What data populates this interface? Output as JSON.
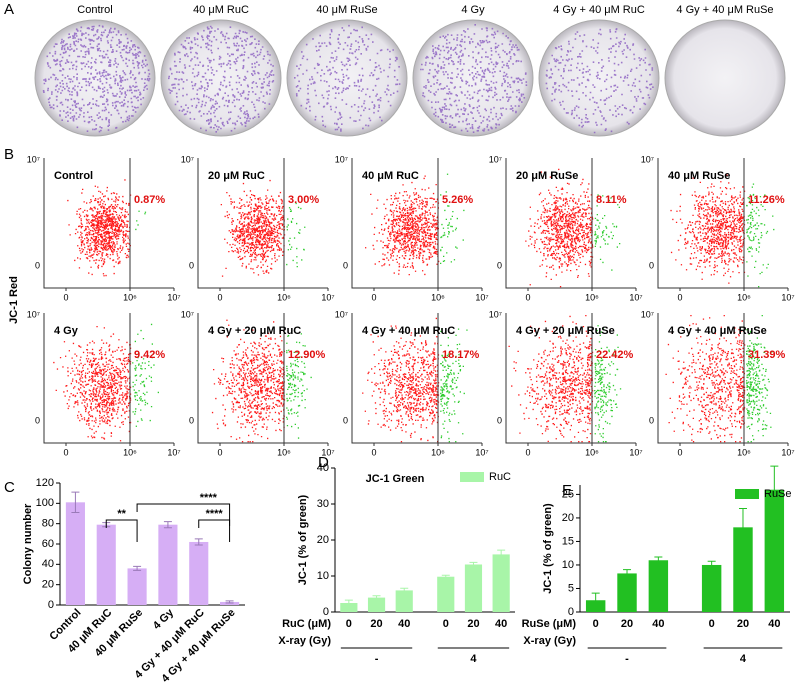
{
  "panel_a": {
    "label": "A",
    "titles": [
      "Control",
      "40 μM RuC",
      "40 μM RuSe",
      "4 Gy",
      "4 Gy + 40 μM RuC",
      "4 Gy + 40 μM RuSe"
    ]
  },
  "panel_b": {
    "label": "B",
    "ylabel": "JC-1 Red",
    "xlabel": "JC-1 Green",
    "xtick_labels": [
      "0",
      "10⁶",
      "10⁷"
    ],
    "ytick_labels": [
      "0",
      "10⁷"
    ],
    "plots": [
      {
        "title": "Control",
        "percent": "0.87%"
      },
      {
        "title": "20 μM RuC",
        "percent": "3.00%"
      },
      {
        "title": "40 μM RuC",
        "percent": "5.26%"
      },
      {
        "title": "20 μM RuSe",
        "percent": "8.11%"
      },
      {
        "title": "40 μM RuSe",
        "percent": "11.26%"
      },
      {
        "title": "4 Gy",
        "percent": "9.42%"
      },
      {
        "title": "4 Gy + 20 μM RuC",
        "percent": "12.90%"
      },
      {
        "title": "4 Gy + 40 μM RuC",
        "percent": "18.17%"
      },
      {
        "title": "4 Gy + 20 μM RuSe",
        "percent": "22.42%"
      },
      {
        "title": "4 Gy + 40 μM RuSe",
        "percent": "31.39%"
      }
    ]
  },
  "chart_data": [
    {
      "type": "bar",
      "label": "C",
      "ylabel": "Colony number",
      "categories": [
        "Control",
        "40 μM RuC",
        "40 μM RuSe",
        "4 Gy",
        "4 Gy + 40 μM RuC",
        "4 Gy + 40 μM RuSe"
      ],
      "values": [
        101,
        79,
        36,
        79,
        62,
        3
      ],
      "errors": [
        10,
        2,
        2,
        3,
        3,
        1
      ],
      "color": "#d6aef5",
      "ylim": [
        0,
        120
      ],
      "yticks": [
        0,
        20,
        40,
        60,
        80,
        100,
        120
      ],
      "annotations": [
        "**",
        "****",
        "****"
      ]
    },
    {
      "type": "bar",
      "label": "D",
      "ylabel": "JC-1 (% of green)",
      "categories": [
        "0",
        "20",
        "40",
        "0",
        "20",
        "40"
      ],
      "row_labels": [
        "RuC (μM)",
        "X-ray (Gy)"
      ],
      "groups": [
        "-",
        "4"
      ],
      "series": [
        {
          "name": "RuC",
          "color": "#a8f5a8",
          "values": [
            2.5,
            4,
            6,
            9.8,
            13.2,
            16
          ],
          "errors": [
            0.8,
            0.5,
            0.6,
            0.4,
            0.6,
            1.2
          ]
        }
      ],
      "ylim": [
        0,
        40
      ],
      "yticks": [
        0,
        10,
        20,
        30,
        40
      ]
    },
    {
      "type": "bar",
      "label": "E",
      "ylabel": "JC-1 (% of green)",
      "categories": [
        "0",
        "20",
        "40",
        "0",
        "20",
        "40"
      ],
      "row_labels": [
        "RuSe (μM)",
        "X-ray (Gy)"
      ],
      "groups": [
        "-",
        "4"
      ],
      "series": [
        {
          "name": "RuSe",
          "color": "#22c022",
          "values": [
            2.5,
            8.2,
            11,
            10,
            18,
            26
          ],
          "errors": [
            1.5,
            0.8,
            0.7,
            0.8,
            4,
            5
          ]
        }
      ],
      "ylim": [
        0,
        27
      ],
      "yticks": [
        0,
        5,
        10,
        15,
        20,
        25
      ]
    }
  ]
}
